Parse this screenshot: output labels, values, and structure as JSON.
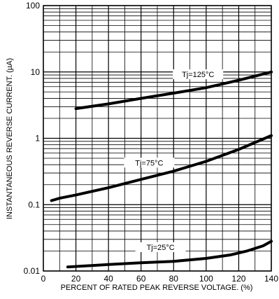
{
  "chart_data": {
    "type": "line",
    "y_scale": "log",
    "xlim": [
      0,
      140
    ],
    "ylim": [
      0.01,
      100
    ],
    "grid": true,
    "xlabel": "PERCENT OF RATED PEAK REVERSE VOLTAGE. (%)",
    "ylabel": "INSTANTANEOUS REVERSE CURRENT. (µA)",
    "x_ticks": [
      "0",
      "20",
      "40",
      "60",
      "80",
      "100",
      "120",
      "140"
    ],
    "y_ticks": [
      "0.01",
      "0.1",
      "1",
      "10",
      "100"
    ],
    "series": [
      {
        "name": "Tj=125°C",
        "x": [
          20,
          40,
          60,
          80,
          100,
          120,
          140
        ],
        "y": [
          2.8,
          3.3,
          4.0,
          4.8,
          5.8,
          7.5,
          10.0
        ]
      },
      {
        "name": "Tj=75°C",
        "x": [
          5,
          10,
          20,
          40,
          60,
          80,
          100,
          120,
          140
        ],
        "y": [
          0.115,
          0.125,
          0.14,
          0.18,
          0.24,
          0.32,
          0.45,
          0.68,
          1.1
        ]
      },
      {
        "name": "Tj=25°C",
        "x": [
          15,
          40,
          60,
          80,
          100,
          115,
          125,
          135,
          140
        ],
        "y": [
          0.0115,
          0.0125,
          0.0133,
          0.014,
          0.0155,
          0.0175,
          0.02,
          0.024,
          0.028
        ]
      }
    ]
  }
}
